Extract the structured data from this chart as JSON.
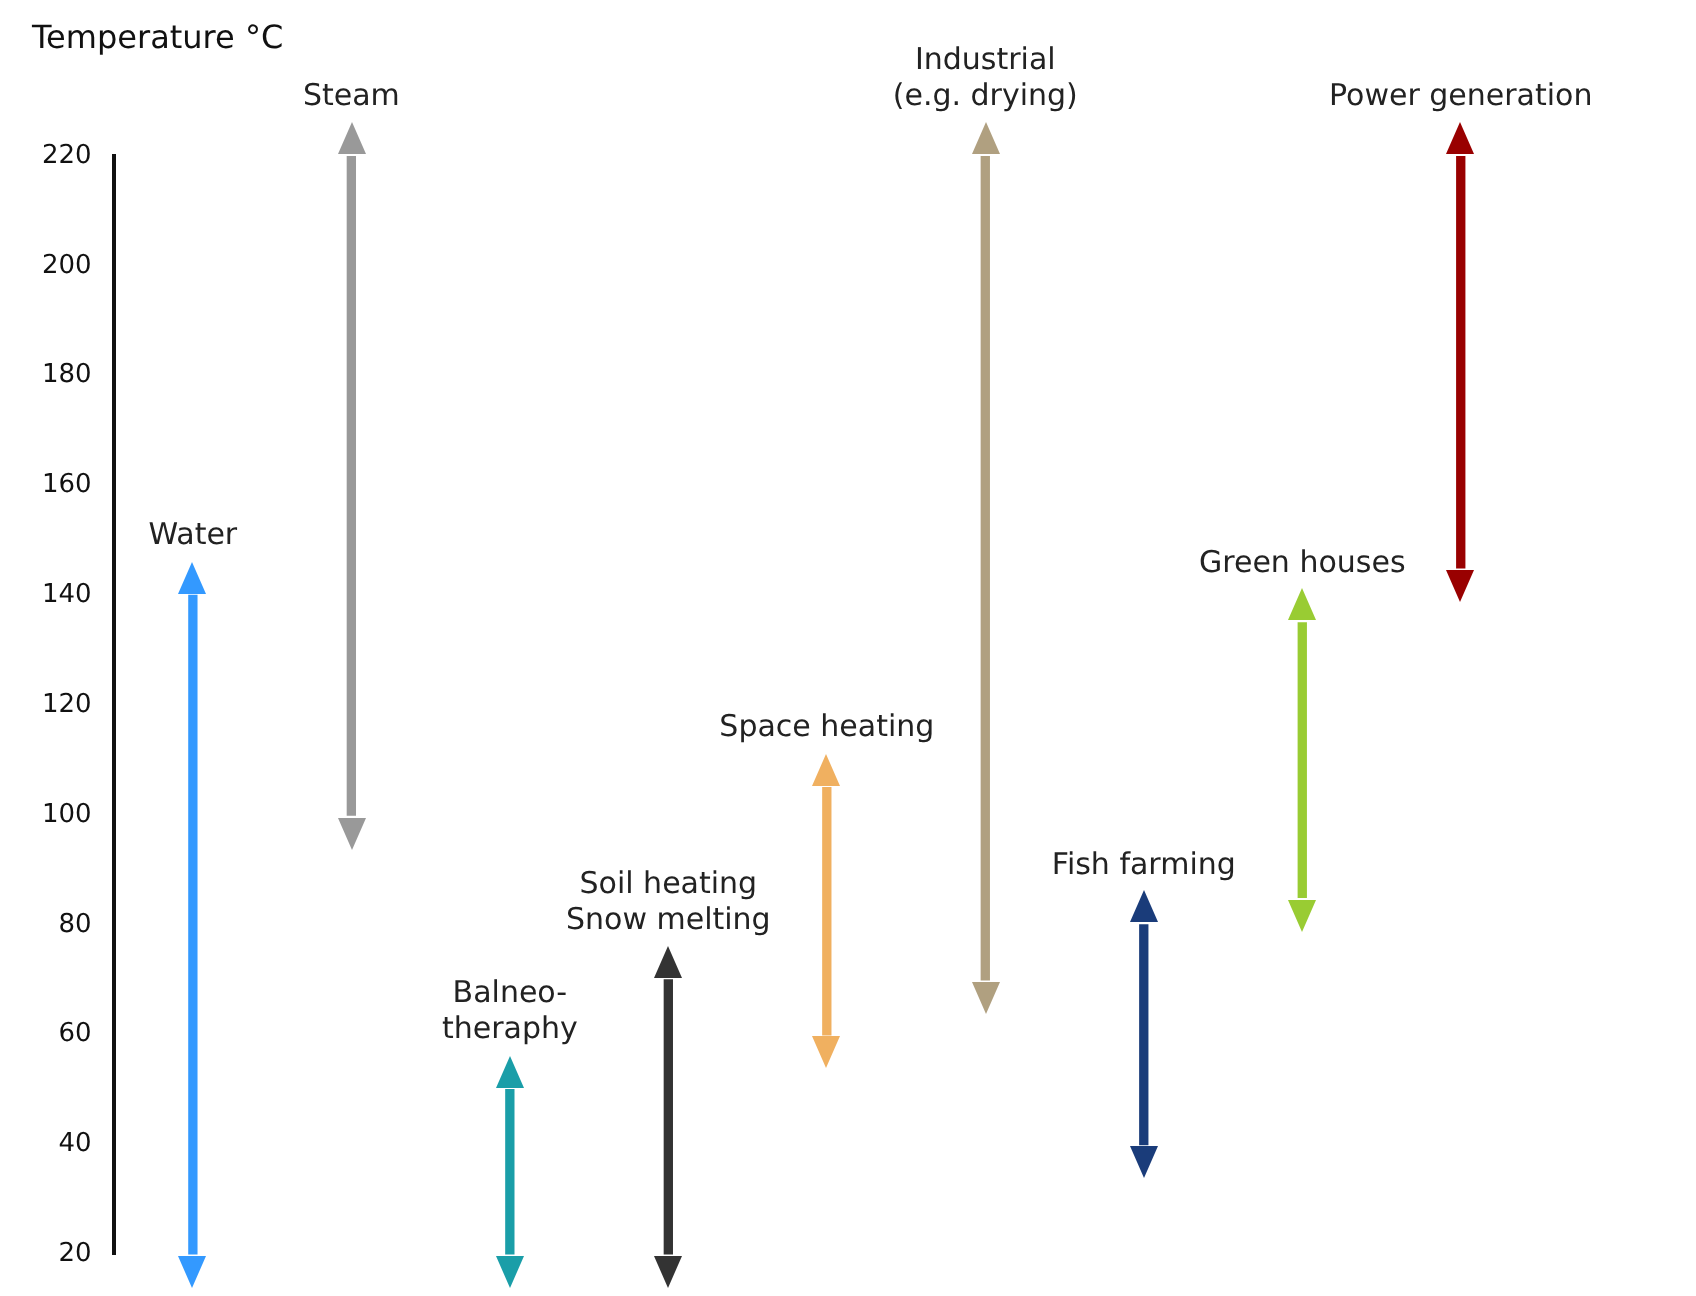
{
  "chart_data": {
    "type": "bar",
    "ylabel": "Temperature °C",
    "categories": [
      "Water",
      "Steam",
      "Balneo-\ntheraphy",
      "Soil heating\nSnow melting",
      "Space heating",
      "Industrial\n(e.g. drying)",
      "Fish farming",
      "Green houses",
      "Power generation"
    ],
    "base": [
      20,
      100,
      20,
      20,
      60,
      70,
      40,
      85,
      145
    ],
    "values": [
      120,
      120,
      30,
      50,
      45,
      150,
      40,
      50,
      75
    ],
    "colors": [
      "#3399ff",
      "#999999",
      "#1a9ea8",
      "#333333",
      "#f0b060",
      "#b0a080",
      "#1a3c7a",
      "#99cc33",
      "#990000"
    ],
    "ylim": [
      20,
      220
    ],
    "yticks": [
      20,
      40,
      60,
      80,
      100,
      120,
      140,
      160,
      180,
      200,
      220
    ],
    "grid": false,
    "legend": false
  }
}
